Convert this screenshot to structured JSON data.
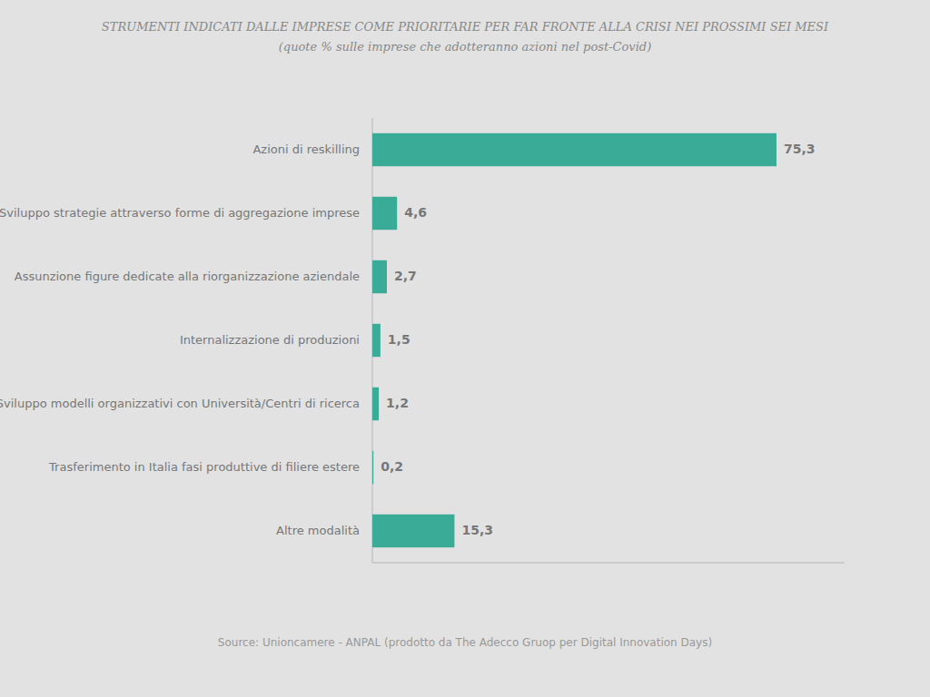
{
  "chart_data": {
    "type": "bar",
    "orientation": "horizontal",
    "title": "STRUMENTI INDICATI DALLE IMPRESE COME PRIORITARIE PER FAR FRONTE ALLA CRISI NEI PROSSIMI SEI MESI",
    "subtitle": "(quote % sulle imprese che adotteranno azioni nel post-Covid)",
    "annotations": [
      "Source: Unioncamere - ANPAL (prodotto da The Adecco Gruop per Digital Innovation Days)"
    ],
    "categories": [
      "Azioni di reskilling",
      "Sviluppo strategie attraverso forme di aggregazione imprese",
      "Assunzione figure dedicate alla riorganizzazione aziendale",
      "Internalizzazione di produzioni",
      "Sviluppo modelli organizzativi con Università/Centri di ricerca",
      "Trasferimento in Italia fasi produttive di filiere estere",
      "Altre modalità"
    ],
    "values": [
      75.3,
      4.6,
      2.7,
      1.5,
      1.2,
      0.2,
      15.3
    ],
    "value_labels": [
      "75,3",
      "4,6",
      "2,7",
      "1,5",
      "1,2",
      "0,2",
      "15,3"
    ],
    "color": "#3aab96",
    "xlim": [
      0,
      88
    ],
    "grid": false,
    "data_labels": true,
    "tick_labels": "y"
  }
}
